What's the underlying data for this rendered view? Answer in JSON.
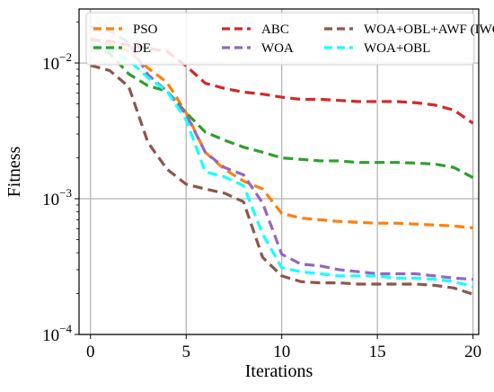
{
  "chart_data": {
    "type": "line",
    "title": "",
    "xlabel": "Iterations",
    "ylabel": "Fitness",
    "xlim": [
      -0.6,
      20.3
    ],
    "ylim": [
      0.0001,
      0.025
    ],
    "yscale": "log",
    "grid": true,
    "legend_position": "top",
    "x": [
      0,
      1,
      2,
      3,
      4,
      5,
      6,
      7,
      8,
      9,
      10,
      11,
      12,
      13,
      14,
      15,
      16,
      17,
      18,
      19,
      20
    ],
    "x_ticks": [
      0,
      5,
      10,
      15,
      20
    ],
    "x_tick_labels": [
      "0",
      "5",
      "10",
      "15",
      "20"
    ],
    "y_ticks": [
      0.0001,
      0.001,
      0.01
    ],
    "y_tick_labels": [
      {
        "base": "10",
        "exp": "−4"
      },
      {
        "base": "10",
        "exp": "−3"
      },
      {
        "base": "10",
        "exp": "−2"
      }
    ],
    "series": [
      {
        "name": "PSO",
        "color": "#ff7f0e",
        "values": [
          0.0152,
          0.0138,
          0.0122,
          0.0092,
          0.0072,
          0.0043,
          0.0022,
          0.00165,
          0.00135,
          0.00118,
          0.00078,
          0.00072,
          0.0007,
          0.00068,
          0.00067,
          0.00066,
          0.00066,
          0.00065,
          0.00064,
          0.00063,
          0.00061
        ]
      },
      {
        "name": "DE",
        "color": "#2ca02c",
        "values": [
          0.0132,
          0.0118,
          0.0083,
          0.0068,
          0.0062,
          0.0043,
          0.0031,
          0.0027,
          0.0024,
          0.0022,
          0.002,
          0.00195,
          0.0019,
          0.0019,
          0.00185,
          0.00185,
          0.00185,
          0.00183,
          0.0018,
          0.0017,
          0.00143
        ]
      },
      {
        "name": "ABC",
        "color": "#d62728",
        "values": [
          0.0148,
          0.0145,
          0.0135,
          0.0128,
          0.0122,
          0.0095,
          0.0071,
          0.0065,
          0.0061,
          0.0059,
          0.0056,
          0.0054,
          0.0054,
          0.0053,
          0.0052,
          0.0052,
          0.0052,
          0.0051,
          0.0049,
          0.0045,
          0.0036
        ]
      },
      {
        "name": "WOA",
        "color": "#9467bd",
        "values": [
          0.0185,
          0.0172,
          0.0142,
          0.0082,
          0.0062,
          0.0042,
          0.0022,
          0.0017,
          0.0015,
          0.00093,
          0.00039,
          0.00033,
          0.00032,
          0.0003,
          0.00029,
          0.00028,
          0.00028,
          0.00028,
          0.00027,
          0.00026,
          0.000255
        ]
      },
      {
        "name": "WOA+OBL+AWF (IWOA)",
        "color": "#8c564b",
        "values": [
          0.0096,
          0.0088,
          0.0067,
          0.0026,
          0.00165,
          0.00128,
          0.00118,
          0.0011,
          0.00095,
          0.00037,
          0.00027,
          0.000245,
          0.00024,
          0.00024,
          0.000235,
          0.000235,
          0.000235,
          0.000235,
          0.00023,
          0.00022,
          0.000198
        ]
      },
      {
        "name": "WOA+OBL",
        "color": "#17ffff",
        "values": [
          0.0138,
          0.0125,
          0.0105,
          0.0078,
          0.0062,
          0.0038,
          0.00158,
          0.00145,
          0.00125,
          0.00055,
          0.00031,
          0.00029,
          0.00028,
          0.00027,
          0.00027,
          0.00027,
          0.00026,
          0.00026,
          0.000255,
          0.000245,
          0.000225
        ]
      }
    ],
    "legend_order": [
      "PSO",
      "DE",
      "ABC",
      "WOA",
      "WOA+OBL+AWF (IWOA)",
      "WOA+OBL"
    ]
  }
}
